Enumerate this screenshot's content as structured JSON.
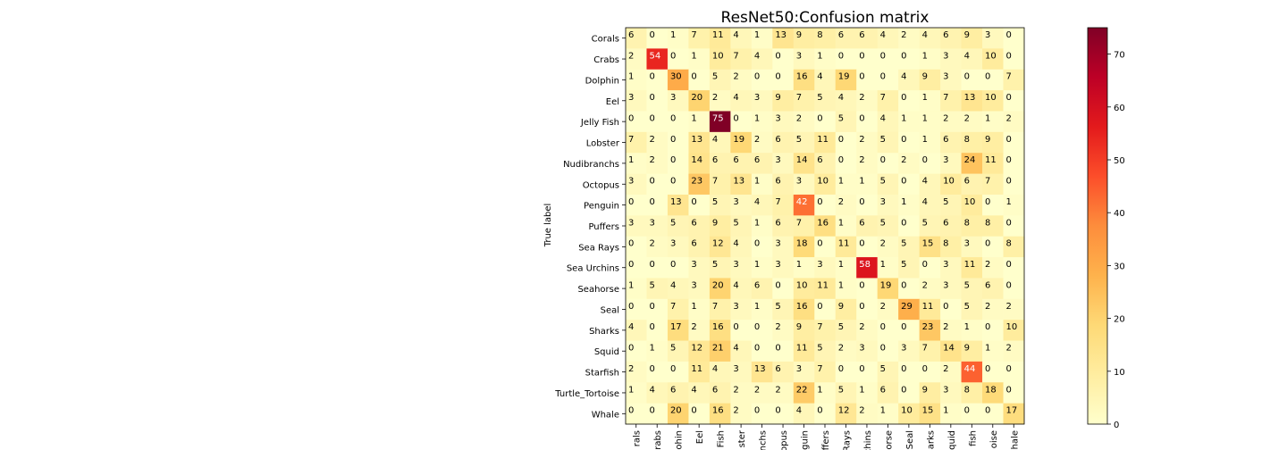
{
  "chart_data": {
    "type": "heatmap",
    "title": "ResNet50:Confusion matrix",
    "ylabel": "True label",
    "xlabel": "",
    "row_labels": [
      "Corals",
      "Crabs",
      "Dolphin",
      "Eel",
      "Jelly Fish",
      "Lobster",
      "Nudibranchs",
      "Octopus",
      "Penguin",
      "Puffers",
      "Sea Rays",
      "Sea Urchins",
      "Seahorse",
      "Seal",
      "Sharks",
      "Squid",
      "Starfish",
      "Turtle_Tortoise",
      "Whale"
    ],
    "col_labels": [
      "Corals",
      "Crabs",
      "Dolphin",
      "Eel",
      "Jelly Fish",
      "Lobster",
      "Nudibranchs",
      "Octopus",
      "Penguin",
      "Puffers",
      "Sea Rays",
      "Sea Urchins",
      "Seahorse",
      "Seal",
      "Sharks",
      "Squid",
      "Starfish",
      "Turtle_Tortoise",
      "Whale"
    ],
    "col_labels_visible": [
      "rals",
      "rabs",
      "ohin",
      "Eel",
      "Fish",
      "ster",
      "nchs",
      "opus",
      "guin",
      "ffers",
      "Rays",
      "chins",
      "orse",
      "Seal",
      "harks",
      "quid",
      "fish",
      "oise",
      "hale"
    ],
    "matrix": [
      [
        6,
        0,
        1,
        7,
        11,
        4,
        1,
        13,
        9,
        8,
        6,
        6,
        4,
        2,
        4,
        6,
        9,
        3,
        0
      ],
      [
        2,
        54,
        0,
        1,
        10,
        7,
        4,
        0,
        3,
        1,
        0,
        0,
        0,
        0,
        1,
        3,
        4,
        10,
        0
      ],
      [
        1,
        0,
        30,
        0,
        5,
        2,
        0,
        0,
        16,
        4,
        19,
        0,
        0,
        4,
        9,
        3,
        0,
        0,
        7
      ],
      [
        3,
        0,
        3,
        20,
        2,
        4,
        3,
        9,
        7,
        5,
        4,
        2,
        7,
        0,
        1,
        7,
        13,
        10,
        0
      ],
      [
        0,
        0,
        0,
        1,
        75,
        0,
        1,
        3,
        2,
        0,
        5,
        0,
        4,
        1,
        1,
        2,
        2,
        1,
        2
      ],
      [
        7,
        2,
        0,
        13,
        4,
        19,
        2,
        6,
        5,
        11,
        0,
        2,
        5,
        0,
        1,
        6,
        8,
        9,
        0
      ],
      [
        1,
        2,
        0,
        14,
        6,
        6,
        6,
        3,
        14,
        6,
        0,
        2,
        0,
        2,
        0,
        3,
        24,
        11,
        0
      ],
      [
        3,
        0,
        0,
        23,
        7,
        13,
        1,
        6,
        3,
        10,
        1,
        1,
        5,
        0,
        4,
        10,
        6,
        7,
        0
      ],
      [
        0,
        0,
        13,
        0,
        5,
        3,
        4,
        7,
        42,
        0,
        2,
        0,
        3,
        1,
        4,
        5,
        10,
        0,
        1
      ],
      [
        3,
        3,
        5,
        6,
        9,
        5,
        1,
        6,
        7,
        16,
        1,
        6,
        5,
        0,
        5,
        6,
        8,
        8,
        0
      ],
      [
        0,
        2,
        3,
        6,
        12,
        4,
        0,
        3,
        18,
        0,
        11,
        0,
        2,
        5,
        15,
        8,
        3,
        0,
        8
      ],
      [
        0,
        0,
        0,
        3,
        5,
        3,
        1,
        3,
        1,
        3,
        1,
        58,
        1,
        5,
        0,
        3,
        11,
        2,
        0
      ],
      [
        1,
        5,
        4,
        3,
        20,
        4,
        6,
        0,
        10,
        11,
        1,
        0,
        19,
        0,
        2,
        3,
        5,
        6,
        0
      ],
      [
        0,
        0,
        7,
        1,
        7,
        3,
        1,
        5,
        16,
        0,
        9,
        0,
        2,
        29,
        11,
        0,
        5,
        2,
        2
      ],
      [
        4,
        0,
        17,
        2,
        16,
        0,
        0,
        2,
        9,
        7,
        5,
        2,
        0,
        0,
        23,
        2,
        1,
        0,
        10
      ],
      [
        0,
        1,
        5,
        12,
        21,
        4,
        0,
        0,
        11,
        5,
        2,
        3,
        0,
        3,
        7,
        14,
        9,
        1,
        2
      ],
      [
        2,
        0,
        0,
        11,
        4,
        3,
        13,
        6,
        3,
        7,
        0,
        0,
        5,
        0,
        0,
        2,
        44,
        0,
        0
      ],
      [
        1,
        4,
        6,
        4,
        6,
        2,
        2,
        2,
        22,
        1,
        5,
        1,
        6,
        0,
        9,
        3,
        8,
        18,
        0
      ],
      [
        0,
        0,
        20,
        0,
        16,
        2,
        0,
        0,
        4,
        0,
        12,
        2,
        1,
        10,
        15,
        1,
        0,
        0,
        17
      ]
    ],
    "vmin": 0,
    "vmax": 75,
    "colorbar_ticks": [
      0,
      10,
      20,
      30,
      40,
      50,
      60,
      70
    ],
    "colormap": "YlOrRd",
    "grid": false,
    "legend": "colorbar-right"
  }
}
